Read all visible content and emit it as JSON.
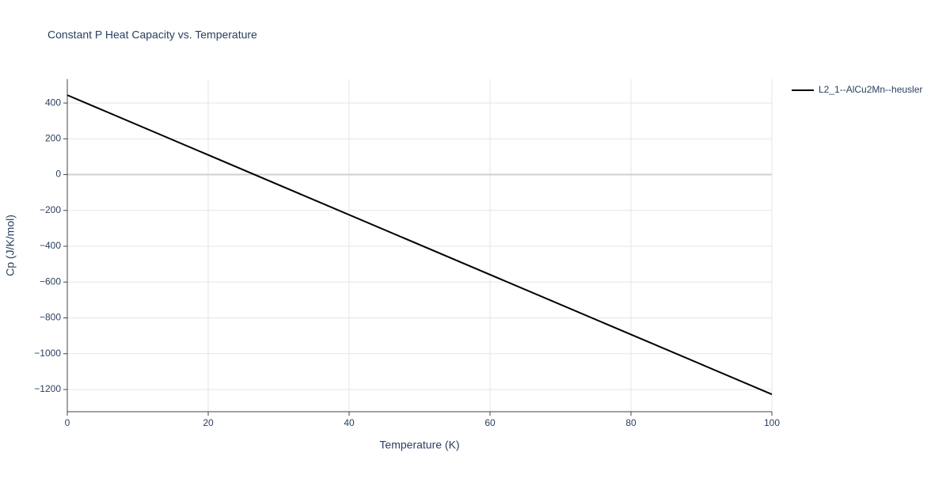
{
  "chart_data": {
    "type": "line",
    "title": "Constant P Heat Capacity vs. Temperature",
    "x_label": "Temperature (K)",
    "y_label": "Cp (J/K/mol)",
    "x": [
      0,
      100
    ],
    "series": [
      {
        "name": "L2_1--AlCu2Mn--heusler",
        "color": "#000000",
        "values": [
          444,
          -1227
        ]
      }
    ],
    "xlim": [
      0,
      100
    ],
    "xticks": [
      0,
      20,
      40,
      60,
      80,
      100
    ],
    "ylim": [
      -1324,
      533
    ],
    "yticks": [
      {
        "value": -1200,
        "label": "−1200"
      },
      {
        "value": -1000,
        "label": "−1000"
      },
      {
        "value": -800,
        "label": "−800"
      },
      {
        "value": -600,
        "label": "−600"
      },
      {
        "value": -400,
        "label": "−400"
      },
      {
        "value": -200,
        "label": "−200"
      },
      0,
      200,
      400
    ],
    "grid": true,
    "legend": "right"
  }
}
